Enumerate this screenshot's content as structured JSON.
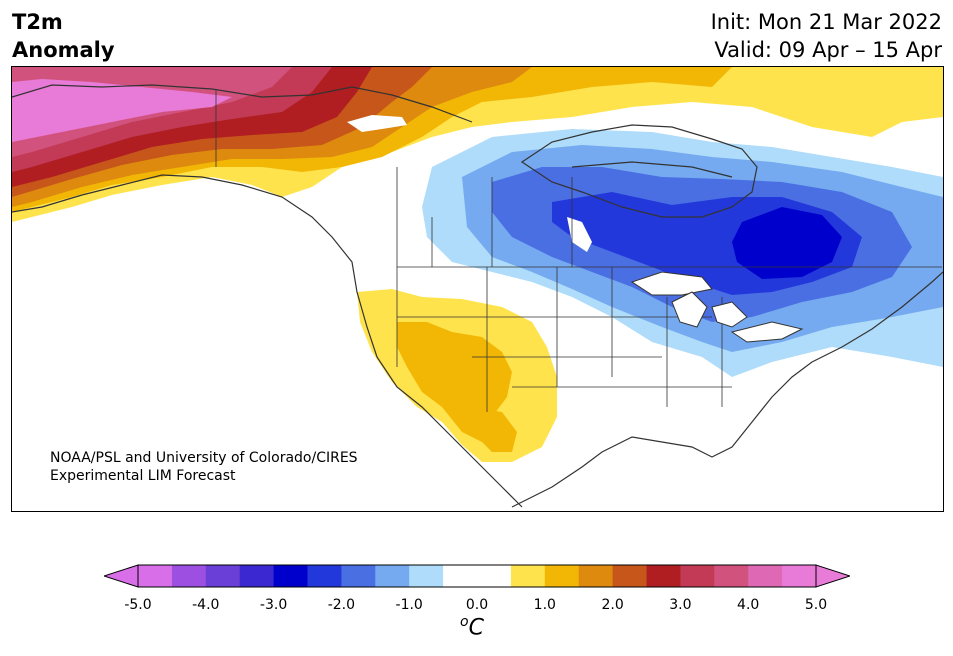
{
  "header": {
    "title_line1": "T2m",
    "title_line2": "Anomaly",
    "init_text": "Init: Mon 21 Mar 2022",
    "valid_text": "Valid: 09 Apr – 15 Apr"
  },
  "credit": {
    "line1": "NOAA/PSL and University of Colorado/CIRES",
    "line2": "Experimental LIM Forecast"
  },
  "colorbar": {
    "unit_base": "C",
    "unit_sup": "o",
    "tick_labels": [
      "-5.0",
      "-4.0",
      "-3.0",
      "-2.0",
      "-1.0",
      "0.0",
      "1.0",
      "2.0",
      "3.0",
      "4.0",
      "5.0"
    ],
    "bins": [
      {
        "from": -5.0,
        "to": -4.5,
        "color": "#d86fe8"
      },
      {
        "from": -4.5,
        "to": -4.0,
        "color": "#9c4fe0"
      },
      {
        "from": -4.0,
        "to": -3.5,
        "color": "#6a3fd8"
      },
      {
        "from": -3.5,
        "to": -3.0,
        "color": "#3b28d0"
      },
      {
        "from": -3.0,
        "to": -2.5,
        "color": "#0000cd"
      },
      {
        "from": -2.5,
        "to": -2.0,
        "color": "#2338db"
      },
      {
        "from": -2.0,
        "to": -1.5,
        "color": "#4a6fe3"
      },
      {
        "from": -1.5,
        "to": -1.0,
        "color": "#75aaf0"
      },
      {
        "from": -1.0,
        "to": -0.5,
        "color": "#aedcfa"
      },
      {
        "from": -0.5,
        "to": 0.5,
        "color": "#ffffff"
      },
      {
        "from": 0.5,
        "to": 1.0,
        "color": "#ffe34d"
      },
      {
        "from": 1.0,
        "to": 1.5,
        "color": "#f2b705"
      },
      {
        "from": 1.5,
        "to": 2.0,
        "color": "#de8a0f"
      },
      {
        "from": 2.0,
        "to": 2.5,
        "color": "#c7561a"
      },
      {
        "from": 2.5,
        "to": 3.0,
        "color": "#b01e22"
      },
      {
        "from": 3.0,
        "to": 3.5,
        "color": "#c23a55"
      },
      {
        "from": 3.5,
        "to": 4.0,
        "color": "#d2527e"
      },
      {
        "from": 4.0,
        "to": 4.5,
        "color": "#de68b4"
      },
      {
        "from": 4.5,
        "to": 5.0,
        "color": "#e87ad8"
      }
    ],
    "under_color": "#d86fe8",
    "over_color": "#e87ad8",
    "range": [
      -5.0,
      5.0
    ]
  },
  "map": {
    "field": "2m temperature anomaly (°C)",
    "regions": [
      {
        "name": "alaska-warm-anomaly",
        "anomaly_c": 5.0
      },
      {
        "name": "great-lakes-cold-anomaly",
        "anomaly_c": -3.0
      },
      {
        "name": "southwest-warm-anomaly",
        "anomaly_c": 1.5
      }
    ]
  }
}
